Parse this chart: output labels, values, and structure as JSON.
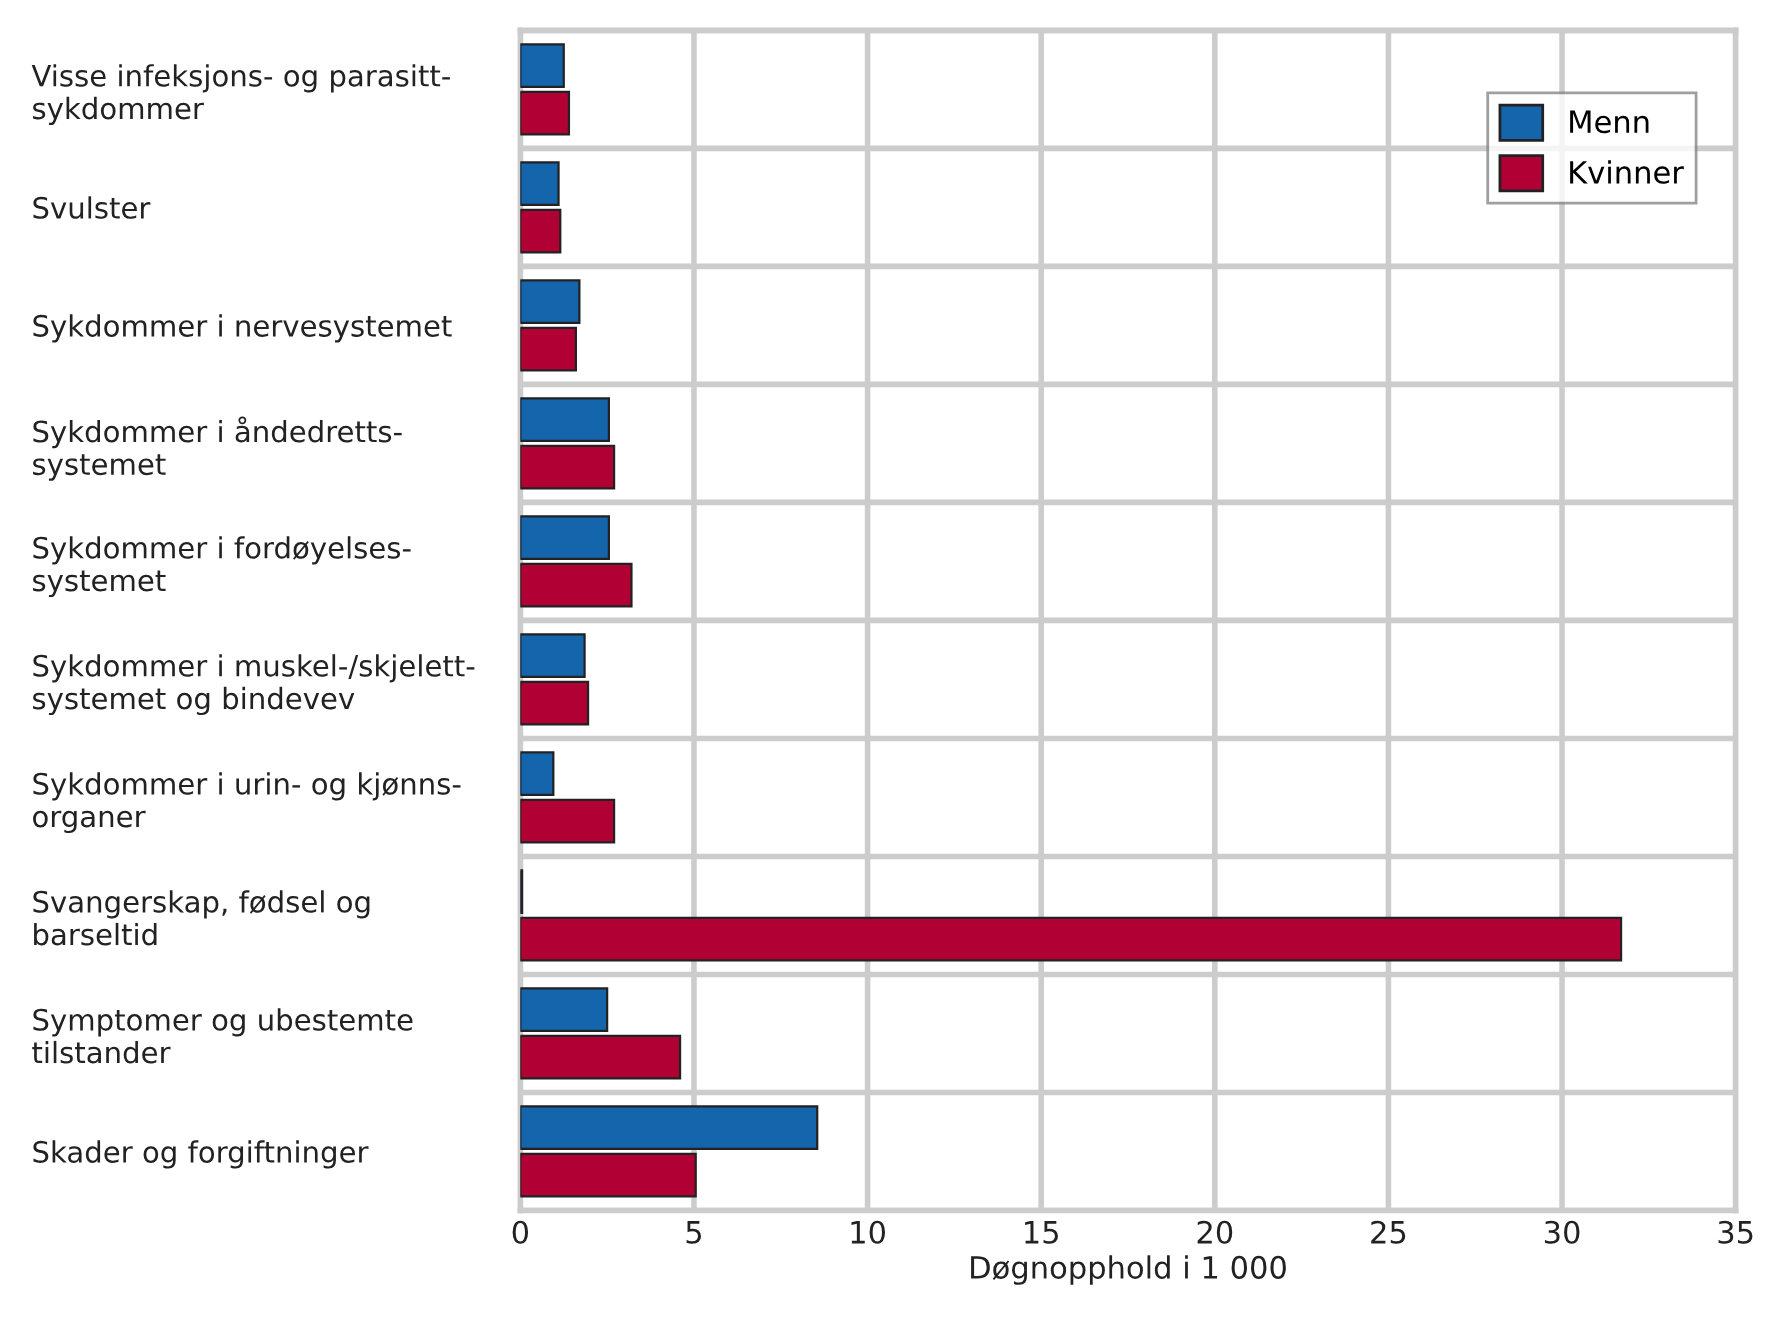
{
  "chart_data": {
    "type": "bar",
    "orientation": "horizontal",
    "xlabel": "Døgnopphold i 1 000",
    "categories": [
      "Visse infeksjons- og parasitt-\nsykdommer",
      "Svulster",
      "Sykdommer i nervesystemet",
      "Sykdommer i åndedretts-\nsystemet",
      "Sykdommer i fordøyelses-\nsystemet",
      "Sykdommer i muskel-/skjelett-\nsystemet og bindevev",
      "Sykdommer i urin- og kjønns-\norganer",
      "Svangerskap, fødsel og\nbarseltid",
      "Symptomer og ubestemte\ntilstander",
      "Skader og forgiftninger"
    ],
    "series": [
      {
        "name": "Menn",
        "color": "#1565ad",
        "values": [
          1.25,
          1.1,
          1.7,
          2.55,
          2.55,
          1.85,
          0.95,
          0.05,
          2.5,
          8.55
        ]
      },
      {
        "name": "Kvinner",
        "color": "#b00034",
        "values": [
          1.4,
          1.15,
          1.6,
          2.7,
          3.2,
          1.95,
          2.7,
          31.7,
          4.6,
          5.05
        ]
      }
    ],
    "xlim": [
      0,
      35
    ],
    "xticks": [
      0,
      5,
      10,
      15,
      20,
      25,
      30,
      35
    ],
    "grid": true,
    "legend": "top right"
  }
}
